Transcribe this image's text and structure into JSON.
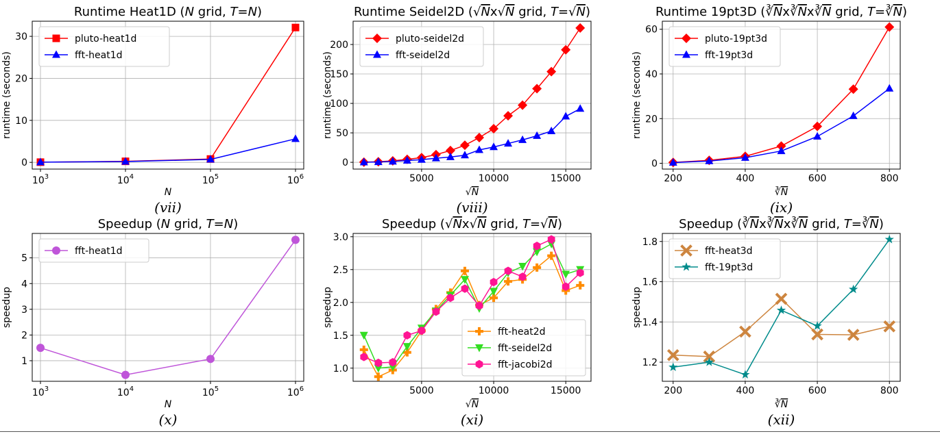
{
  "colors": {
    "red": "#ff0000",
    "blue": "#0000ff",
    "purple": "#bf55d9",
    "orange": "#ff8c00",
    "green": "#33dd22",
    "pink": "#ff1493",
    "tan": "#cd853f",
    "teal": "#008b8b"
  },
  "chart_data": [
    {
      "id": "vii",
      "type": "line",
      "title": "Runtime Heat1D (N grid, T=N)",
      "title_parts": [
        {
          "t": "Runtime Heat1D ("
        },
        {
          "t": "N",
          "i": true
        },
        {
          "t": " grid, "
        },
        {
          "t": "T",
          "i": true
        },
        {
          "t": "="
        },
        {
          "t": "N",
          "i": true
        },
        {
          "t": ")"
        }
      ],
      "caption": "(vii)",
      "xlabel": "N",
      "ylabel": "runtime (seconds)",
      "xscale": "log",
      "xlim": [
        800,
        1250000
      ],
      "ylim": [
        -1.6,
        33.6
      ],
      "xticks": [
        {
          "v": 1000,
          "b": "10",
          "e": "3"
        },
        {
          "v": 10000,
          "b": "10",
          "e": "4"
        },
        {
          "v": 100000,
          "b": "10",
          "e": "5"
        },
        {
          "v": 1000000,
          "b": "10",
          "e": "6"
        }
      ],
      "yticks": [
        {
          "v": 0,
          "l": "0"
        },
        {
          "v": 10,
          "l": "10"
        },
        {
          "v": 20,
          "l": "20"
        },
        {
          "v": 30,
          "l": "30"
        }
      ],
      "legend": "top-left",
      "grid": true,
      "series": [
        {
          "name": "pluto-heat1d",
          "color": "#ff0000",
          "marker": "square",
          "x": [
            1000,
            10000,
            100000,
            1000000
          ],
          "y": [
            0.05,
            0.25,
            0.8,
            32.1
          ]
        },
        {
          "name": "fft-heat1d",
          "color": "#0000ff",
          "marker": "triangle",
          "x": [
            1000,
            10000,
            100000,
            1000000
          ],
          "y": [
            0.05,
            0.2,
            0.7,
            5.6
          ]
        }
      ]
    },
    {
      "id": "viii",
      "type": "line",
      "title": "Runtime Seidel2D (√N x √N grid, T=√N)",
      "title_parts": [
        {
          "t": "Runtime Seidel2D ("
        },
        {
          "t": "√"
        },
        {
          "t": "N",
          "i": true,
          "o": true
        },
        {
          "t": "x"
        },
        {
          "t": "√"
        },
        {
          "t": "N",
          "i": true,
          "o": true
        },
        {
          "t": " grid, "
        },
        {
          "t": "T",
          "i": true
        },
        {
          "t": "="
        },
        {
          "t": "√"
        },
        {
          "t": "N",
          "i": true,
          "o": true
        },
        {
          "t": ")"
        }
      ],
      "caption": "(viii)",
      "xlabel": "√N",
      "xlabel_parts": [
        {
          "t": "√"
        },
        {
          "t": "N",
          "i": true,
          "o": true
        }
      ],
      "ylabel": "runtime (seconds)",
      "xscale": "linear",
      "xlim": [
        250,
        16750
      ],
      "ylim": [
        -11.5,
        239.5
      ],
      "xticks": [
        {
          "v": 5000,
          "l": "5000"
        },
        {
          "v": 10000,
          "l": "10000"
        },
        {
          "v": 15000,
          "l": "15000"
        }
      ],
      "yticks": [
        {
          "v": 0,
          "l": "0"
        },
        {
          "v": 50,
          "l": "50"
        },
        {
          "v": 100,
          "l": "100"
        },
        {
          "v": 150,
          "l": "150"
        },
        {
          "v": 200,
          "l": "200"
        }
      ],
      "legend": "top-left",
      "grid": true,
      "series": [
        {
          "name": "pluto-seidel2d",
          "color": "#ff0000",
          "marker": "diamond",
          "x": [
            1000,
            2000,
            3000,
            4000,
            5000,
            6000,
            7000,
            8000,
            9000,
            10000,
            11000,
            12000,
            13000,
            14000,
            15000,
            16000
          ],
          "y": [
            0.2,
            1,
            2.5,
            5,
            8,
            13,
            20,
            29,
            42,
            57,
            79,
            97,
            125,
            154,
            191,
            228
          ]
        },
        {
          "name": "fft-seidel2d",
          "color": "#0000ff",
          "marker": "triangle",
          "x": [
            1000,
            2000,
            3000,
            4000,
            5000,
            6000,
            7000,
            8000,
            9000,
            10000,
            11000,
            12000,
            13000,
            14000,
            15000,
            16000
          ],
          "y": [
            0.1,
            0.5,
            1.5,
            3,
            4.5,
            7,
            9,
            12,
            21,
            26,
            32,
            38,
            45,
            53,
            78,
            91
          ]
        }
      ]
    },
    {
      "id": "ix",
      "type": "line",
      "title": "Runtime 19pt3D (∛N x ∛N x ∛N grid, T=∛N)",
      "title_parts": [
        {
          "t": "Runtime 19pt3D ("
        },
        {
          "t": "∛"
        },
        {
          "t": "N",
          "i": true,
          "o": true
        },
        {
          "t": "x"
        },
        {
          "t": "∛"
        },
        {
          "t": "N",
          "i": true,
          "o": true
        },
        {
          "t": "x"
        },
        {
          "t": "∛"
        },
        {
          "t": "N",
          "i": true,
          "o": true
        },
        {
          "t": " grid, "
        },
        {
          "t": "T",
          "i": true
        },
        {
          "t": "="
        },
        {
          "t": "∛"
        },
        {
          "t": "N",
          "i": true,
          "o": true
        },
        {
          "t": ")"
        }
      ],
      "caption": "(ix)",
      "xlabel": "∛N",
      "xlabel_parts": [
        {
          "t": "∛"
        },
        {
          "t": "N",
          "i": true,
          "o": true
        }
      ],
      "ylabel": "runtime (seconds)",
      "xscale": "linear",
      "xlim": [
        170,
        830
      ],
      "ylim": [
        -2.6,
        63.6
      ],
      "xticks": [
        {
          "v": 200,
          "l": "200"
        },
        {
          "v": 400,
          "l": "400"
        },
        {
          "v": 600,
          "l": "600"
        },
        {
          "v": 800,
          "l": "800"
        }
      ],
      "yticks": [
        {
          "v": 0,
          "l": "0"
        },
        {
          "v": 20,
          "l": "20"
        },
        {
          "v": 40,
          "l": "40"
        },
        {
          "v": 60,
          "l": "60"
        }
      ],
      "legend": "top-left",
      "grid": true,
      "series": [
        {
          "name": "pluto-19pt3d",
          "color": "#ff0000",
          "marker": "diamond",
          "x": [
            200,
            300,
            400,
            500,
            600,
            700,
            800
          ],
          "y": [
            0.4,
            1.3,
            3.1,
            7.7,
            16.5,
            33.2,
            61
          ]
        },
        {
          "name": "fft-19pt3d",
          "color": "#0000ff",
          "marker": "triangle",
          "x": [
            200,
            300,
            400,
            500,
            600,
            700,
            800
          ],
          "y": [
            0.3,
            1,
            2.5,
            5.5,
            12,
            21.2,
            33.5
          ]
        }
      ]
    },
    {
      "id": "x",
      "type": "line",
      "title": "Speedup (N grid, T=N)",
      "title_parts": [
        {
          "t": "Speedup ("
        },
        {
          "t": "N",
          "i": true
        },
        {
          "t": " grid, "
        },
        {
          "t": "T",
          "i": true
        },
        {
          "t": "="
        },
        {
          "t": "N",
          "i": true
        },
        {
          "t": ")"
        }
      ],
      "caption": "(x)",
      "xlabel": "N",
      "ylabel": "speedup",
      "xscale": "log",
      "xlim": [
        800,
        1250000
      ],
      "ylim": [
        0.2,
        5.95
      ],
      "xticks": [
        {
          "v": 1000,
          "b": "10",
          "e": "3"
        },
        {
          "v": 10000,
          "b": "10",
          "e": "4"
        },
        {
          "v": 100000,
          "b": "10",
          "e": "5"
        },
        {
          "v": 1000000,
          "b": "10",
          "e": "6"
        }
      ],
      "yticks": [
        {
          "v": 1,
          "l": "1"
        },
        {
          "v": 2,
          "l": "2"
        },
        {
          "v": 3,
          "l": "3"
        },
        {
          "v": 4,
          "l": "4"
        },
        {
          "v": 5,
          "l": "5"
        }
      ],
      "legend": "top-left",
      "grid": true,
      "series": [
        {
          "name": "fft-heat1d",
          "color": "#bf55d9",
          "marker": "circle",
          "x": [
            1000,
            10000,
            100000,
            1000000
          ],
          "y": [
            1.5,
            0.45,
            1.07,
            5.7
          ]
        }
      ]
    },
    {
      "id": "xi",
      "type": "line",
      "title": "Speedup (√N x √N grid, T=√N)",
      "title_parts": [
        {
          "t": "Speedup ("
        },
        {
          "t": "√"
        },
        {
          "t": "N",
          "i": true,
          "o": true
        },
        {
          "t": "x"
        },
        {
          "t": "√"
        },
        {
          "t": "N",
          "i": true,
          "o": true
        },
        {
          "t": " grid, "
        },
        {
          "t": "T",
          "i": true
        },
        {
          "t": "="
        },
        {
          "t": "√"
        },
        {
          "t": "N",
          "i": true,
          "o": true
        },
        {
          "t": ")"
        }
      ],
      "caption": "(xi)",
      "xlabel": "√N",
      "xlabel_parts": [
        {
          "t": "√"
        },
        {
          "t": "N",
          "i": true,
          "o": true
        }
      ],
      "ylabel": "speedup",
      "xscale": "linear",
      "xlim": [
        250,
        16750
      ],
      "ylim": [
        0.8,
        3.05
      ],
      "xticks": [
        {
          "v": 5000,
          "l": "5000"
        },
        {
          "v": 10000,
          "l": "10000"
        },
        {
          "v": 15000,
          "l": "15000"
        }
      ],
      "yticks": [
        {
          "v": 1,
          "l": "1.0"
        },
        {
          "v": 1.5,
          "l": "1.5"
        },
        {
          "v": 2,
          "l": "2.0"
        },
        {
          "v": 2.5,
          "l": "2.5"
        },
        {
          "v": 3,
          "l": "3.0"
        }
      ],
      "legend": "bottom-right",
      "grid": true,
      "series": [
        {
          "name": "fft-heat2d",
          "color": "#ff8c00",
          "marker": "plus",
          "x": [
            1000,
            2000,
            3000,
            4000,
            5000,
            6000,
            7000,
            8000,
            9000,
            10000,
            11000,
            12000,
            13000,
            14000,
            15000,
            16000
          ],
          "y": [
            1.28,
            0.87,
            0.97,
            1.24,
            1.57,
            1.9,
            2.15,
            2.48,
            1.96,
            2.07,
            2.32,
            2.35,
            2.53,
            2.71,
            2.18,
            2.26
          ]
        },
        {
          "name": "fft-seidel2d",
          "color": "#33dd22",
          "marker": "tri-down",
          "x": [
            1000,
            2000,
            3000,
            4000,
            5000,
            6000,
            7000,
            8000,
            9000,
            10000,
            11000,
            12000,
            13000,
            14000,
            15000,
            16000
          ],
          "y": [
            1.5,
            1.0,
            1.02,
            1.33,
            1.61,
            1.87,
            2.11,
            2.35,
            1.91,
            2.17,
            2.45,
            2.55,
            2.77,
            2.89,
            2.43,
            2.5
          ]
        },
        {
          "name": "fft-jacobi2d",
          "color": "#ff1493",
          "marker": "hexagon",
          "x": [
            1000,
            2000,
            3000,
            4000,
            5000,
            6000,
            7000,
            8000,
            9000,
            10000,
            11000,
            12000,
            13000,
            14000,
            15000,
            16000
          ],
          "y": [
            1.17,
            1.08,
            1.09,
            1.5,
            1.57,
            1.86,
            2.07,
            2.21,
            1.95,
            2.31,
            2.48,
            2.39,
            2.86,
            2.96,
            2.24,
            2.45
          ]
        }
      ]
    },
    {
      "id": "xii",
      "type": "line",
      "title": "Speedup (∛N x ∛N x ∛N grid, T=∛N)",
      "title_parts": [
        {
          "t": "Speedup ("
        },
        {
          "t": "∛"
        },
        {
          "t": "N",
          "i": true,
          "o": true
        },
        {
          "t": "x"
        },
        {
          "t": "∛"
        },
        {
          "t": "N",
          "i": true,
          "o": true
        },
        {
          "t": "x"
        },
        {
          "t": "∛"
        },
        {
          "t": "N",
          "i": true,
          "o": true
        },
        {
          "t": " grid, "
        },
        {
          "t": "T",
          "i": true
        },
        {
          "t": "="
        },
        {
          "t": "∛"
        },
        {
          "t": "N",
          "i": true,
          "o": true
        },
        {
          "t": ")"
        }
      ],
      "caption": "(xii)",
      "xlabel": "∛N",
      "xlabel_parts": [
        {
          "t": "∛"
        },
        {
          "t": "N",
          "i": true,
          "o": true
        }
      ],
      "ylabel": "speedup",
      "xscale": "linear",
      "xlim": [
        170,
        830
      ],
      "ylim": [
        1.105,
        1.84
      ],
      "xticks": [
        {
          "v": 200,
          "l": "200"
        },
        {
          "v": 400,
          "l": "400"
        },
        {
          "v": 600,
          "l": "600"
        },
        {
          "v": 800,
          "l": "800"
        }
      ],
      "yticks": [
        {
          "v": 1.2,
          "l": "1.2"
        },
        {
          "v": 1.4,
          "l": "1.4"
        },
        {
          "v": 1.6,
          "l": "1.6"
        },
        {
          "v": 1.8,
          "l": "1.8"
        }
      ],
      "legend": "top-left",
      "grid": true,
      "series": [
        {
          "name": "fft-heat3d",
          "color": "#cd853f",
          "marker": "x-filled",
          "x": [
            200,
            300,
            400,
            500,
            600,
            700,
            800
          ],
          "y": [
            1.235,
            1.228,
            1.352,
            1.515,
            1.338,
            1.336,
            1.378
          ]
        },
        {
          "name": "fft-19pt3d",
          "color": "#008b8b",
          "marker": "star",
          "x": [
            200,
            300,
            400,
            500,
            600,
            700,
            800
          ],
          "y": [
            1.175,
            1.2,
            1.138,
            1.458,
            1.38,
            1.562,
            1.81
          ]
        }
      ]
    }
  ]
}
